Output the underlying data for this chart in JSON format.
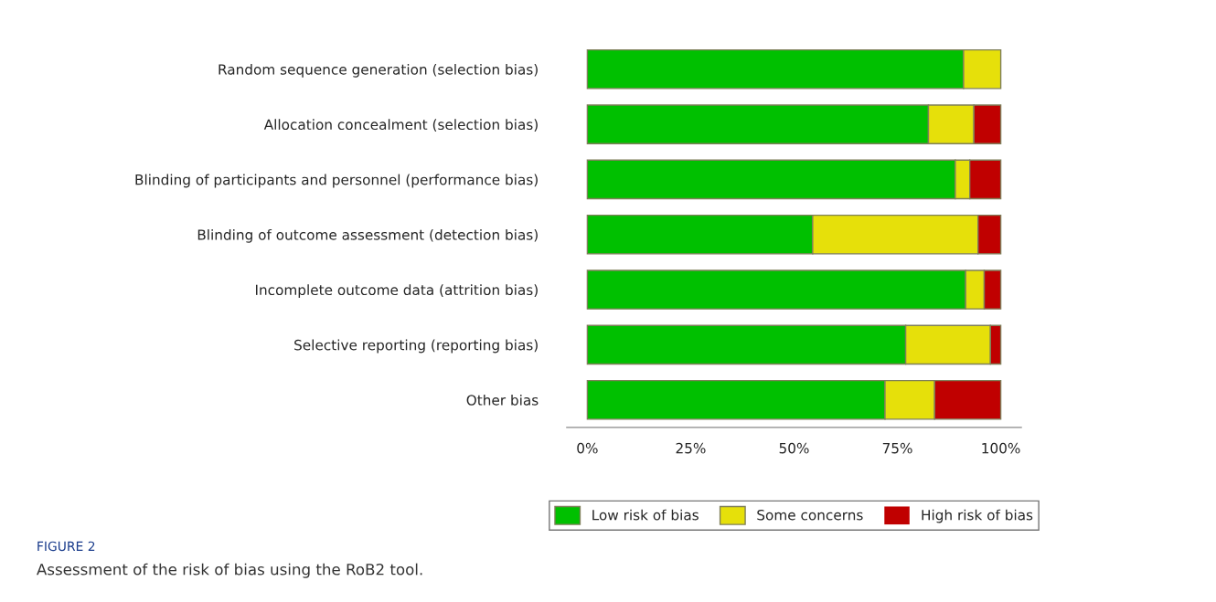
{
  "chart_data": {
    "type": "bar",
    "orientation": "horizontal",
    "stacked": true,
    "categories": [
      "Random sequence generation (selection bias)",
      "Allocation concealment (selection bias)",
      "Blinding of participants and personnel (performance bias)",
      "Blinding of outcome assessment (detection bias)",
      "Incomplete outcome data (attrition bias)",
      "Selective reporting (reporting bias)",
      "Other bias"
    ],
    "series": [
      {
        "name": "Low risk of bias",
        "color": "#00c000",
        "values": [
          91,
          82.5,
          89,
          54.5,
          91.5,
          77,
          72
        ]
      },
      {
        "name": "Some concerns",
        "color": "#e6e00a",
        "values": [
          9,
          11,
          3.5,
          40,
          4.5,
          20.5,
          12
        ]
      },
      {
        "name": "High risk of bias",
        "color": "#c00000",
        "values": [
          0,
          6.5,
          7.5,
          5.5,
          4,
          2.5,
          16
        ]
      }
    ],
    "xlim": [
      -5,
      105
    ],
    "xticks": [
      {
        "value": 0,
        "label": "0%"
      },
      {
        "value": 25,
        "label": "25%"
      },
      {
        "value": 50,
        "label": "50%"
      },
      {
        "value": 75,
        "label": "75%"
      },
      {
        "value": 100,
        "label": "100%"
      }
    ],
    "grid": false,
    "legend": "bottom",
    "annotations": [
      "FIGURE 2",
      "Assessment of the risk of bias using the RoB2 tool."
    ]
  }
}
